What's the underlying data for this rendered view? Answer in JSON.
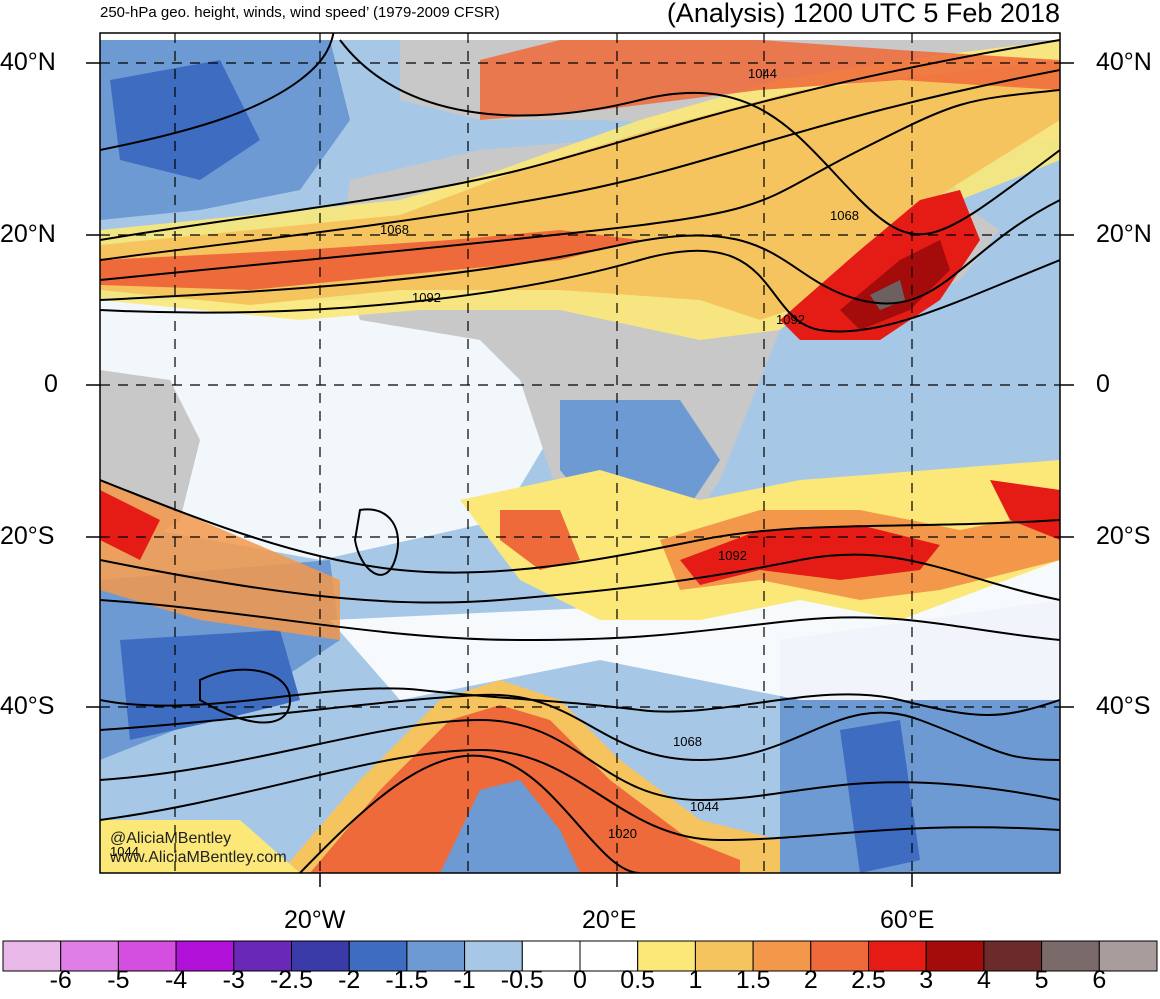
{
  "header": {
    "left_title": "250-hPa geo. height, winds, wind speed’ (1979-2009 CFSR)",
    "right_title": "(Analysis) 1200 UTC 5 Feb 2018"
  },
  "axes": {
    "lat_left": [
      "40°N",
      "20°N",
      "0",
      "20°S",
      "40°S"
    ],
    "lat_right": [
      "40°N",
      "20°N",
      "0",
      "20°S",
      "40°S"
    ],
    "lon": [
      "20°W",
      "20°E",
      "60°E"
    ]
  },
  "contour_labels": [
    "1068",
    "1092",
    "1044",
    "1068",
    "1092",
    "1092",
    "1068",
    "1044",
    "1020",
    "1044"
  ],
  "credit": [
    "@AliciaMBentley",
    "www.AliciaMBentley.com"
  ],
  "colorbar": {
    "labels": [
      "-6",
      "-5",
      "-4",
      "-3",
      "-2.5",
      "-2",
      "-1.5",
      "-1",
      "-0.5",
      "0",
      "0.5",
      "1",
      "1.5",
      "2",
      "2.5",
      "3",
      "4",
      "5",
      "6"
    ],
    "colors": [
      "#e8b8e8",
      "#e07ee8",
      "#d44ee0",
      "#b010d8",
      "#6a28b8",
      "#3a3aa8",
      "#3e6cc0",
      "#6e9ad4",
      "#a6c8e6",
      "#ffffff",
      "#ffffff",
      "#fbe878",
      "#f6c45e",
      "#f3984a",
      "#ef6a3a",
      "#e51c16",
      "#a40c0c",
      "#6c2a2a",
      "#7a6a6a",
      "#a89c9c"
    ]
  }
}
